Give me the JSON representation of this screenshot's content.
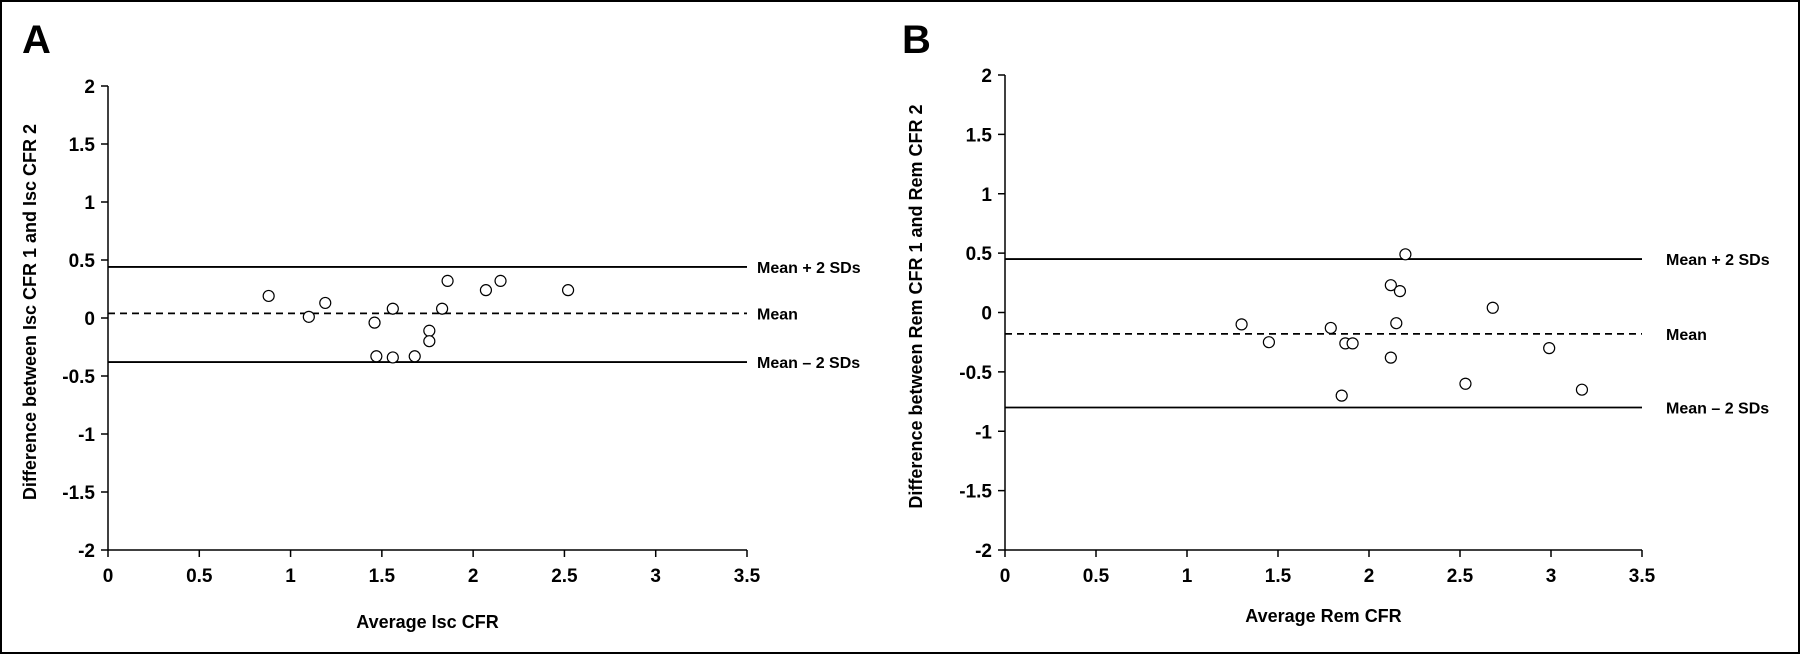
{
  "chart_data": [
    {
      "panel": "A",
      "type": "scatter",
      "xlabel": "Average Isc CFR",
      "ylabel": "Difference between Isc CFR 1 and Isc CFR 2",
      "xlim": [
        0,
        3.5
      ],
      "ylim": [
        -2,
        2
      ],
      "xticks": [
        "0",
        "0.5",
        "1",
        "1.5",
        "2",
        "2.5",
        "3",
        "3.5"
      ],
      "yticks": [
        "2",
        "1.5",
        "1",
        "0.5",
        "0",
        "-0.5",
        "-1",
        "-1.5",
        "-2"
      ],
      "points": [
        [
          0.88,
          0.19
        ],
        [
          1.1,
          0.01
        ],
        [
          1.19,
          0.13
        ],
        [
          1.46,
          -0.04
        ],
        [
          1.47,
          -0.33
        ],
        [
          1.56,
          0.08
        ],
        [
          1.56,
          -0.34
        ],
        [
          1.68,
          -0.33
        ],
        [
          1.76,
          -0.11
        ],
        [
          1.76,
          -0.2
        ],
        [
          1.83,
          0.08
        ],
        [
          1.86,
          0.32
        ],
        [
          2.07,
          0.24
        ],
        [
          2.15,
          0.32
        ],
        [
          2.52,
          0.24
        ]
      ],
      "reference_lines": [
        {
          "label": "Mean + 2 SDs",
          "y": 0.44,
          "style": "solid"
        },
        {
          "label": "Mean",
          "y": 0.04,
          "style": "dashed"
        },
        {
          "label": "Mean – 2 SDs",
          "y": -0.38,
          "style": "solid"
        }
      ]
    },
    {
      "panel": "B",
      "type": "scatter",
      "xlabel": "Average Rem CFR",
      "ylabel": "Difference between Rem CFR 1 and Rem CFR 2",
      "xlim": [
        0,
        3.5
      ],
      "ylim": [
        -2,
        2
      ],
      "xticks": [
        "0",
        "0.5",
        "1",
        "1.5",
        "2",
        "2.5",
        "3",
        "3.5"
      ],
      "yticks": [
        "2",
        "1.5",
        "1",
        "0.5",
        "0",
        "-0.5",
        "-1",
        "-1.5",
        "-2"
      ],
      "points": [
        [
          1.3,
          -0.1
        ],
        [
          1.45,
          -0.25
        ],
        [
          1.79,
          -0.13
        ],
        [
          1.85,
          -0.7
        ],
        [
          1.87,
          -0.26
        ],
        [
          1.91,
          -0.26
        ],
        [
          2.12,
          0.23
        ],
        [
          2.12,
          -0.38
        ],
        [
          2.15,
          -0.09
        ],
        [
          2.17,
          0.18
        ],
        [
          2.2,
          0.49
        ],
        [
          2.53,
          -0.6
        ],
        [
          2.68,
          0.04
        ],
        [
          2.99,
          -0.3
        ],
        [
          3.17,
          -0.65
        ]
      ],
      "reference_lines": [
        {
          "label": "Mean + 2 SDs",
          "y": 0.45,
          "style": "solid"
        },
        {
          "label": "Mean",
          "y": -0.18,
          "style": "dashed"
        },
        {
          "label": "Mean – 2 SDs",
          "y": -0.8,
          "style": "solid"
        }
      ]
    }
  ]
}
